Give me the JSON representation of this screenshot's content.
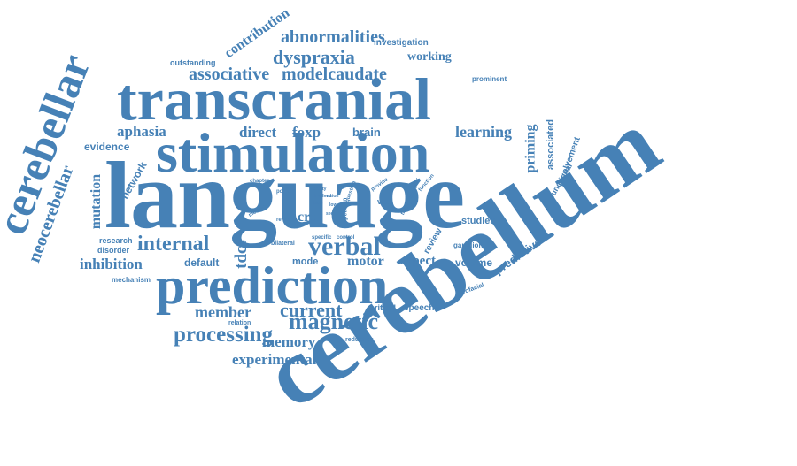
{
  "cloud": {
    "color": "#4681b6",
    "words": [
      "cerebellum",
      "language",
      "transcranial",
      "stimulation",
      "prediction",
      "cerebellar",
      "neocerebellar",
      "internal",
      "verbal",
      "processing",
      "magnetic",
      "current",
      "member",
      "memory",
      "experimental",
      "dyspraxia",
      "abnormalities",
      "associative",
      "modelcaudate",
      "contribution",
      "outstanding",
      "investigation",
      "working",
      "aphasia",
      "direct",
      "foxp",
      "brain",
      "learning",
      "evidence",
      "network",
      "mutation",
      "inhibition",
      "default",
      "tdcs",
      "mode",
      "motor",
      "aspect",
      "volume",
      "predictive",
      "priming",
      "associated",
      "involvement",
      "functional",
      "studies",
      "review",
      "ganglion",
      "speech",
      "critical",
      "orofacial",
      "reduction",
      "relation",
      "mechanism",
      "research",
      "disorder",
      "prominent",
      "bilateral",
      "specific",
      "control",
      "cru",
      "via",
      "repetition",
      "question",
      "provide",
      "complex",
      "chapter",
      "point",
      "remain",
      "method",
      "ability",
      "involved",
      "loop",
      "vision",
      "low",
      "see",
      "theory",
      "function",
      "role"
    ]
  }
}
